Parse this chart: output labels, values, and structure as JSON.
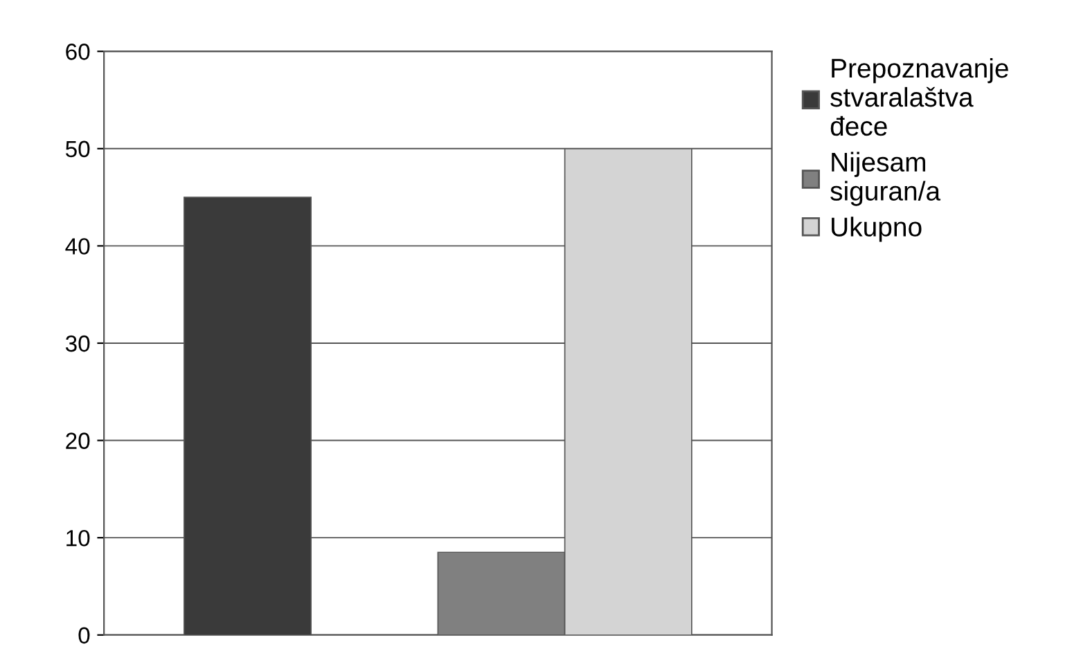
{
  "chart_data": {
    "type": "bar",
    "categories": [
      null
    ],
    "series": [
      {
        "name": "Prepoznavanje stvaralaštva đece",
        "color": "#3a3a3a",
        "values": [
          45
        ]
      },
      {
        "name": "Nijesam siguran/a",
        "color": "#808080",
        "values": [
          8.5
        ]
      },
      {
        "name": "Ukupno",
        "color": "#d4d4d4",
        "values": [
          50
        ]
      }
    ],
    "ylim": [
      0,
      60
    ],
    "yticks": [
      0,
      10,
      20,
      30,
      40,
      50,
      60
    ],
    "grid": "y",
    "legend": "right"
  }
}
